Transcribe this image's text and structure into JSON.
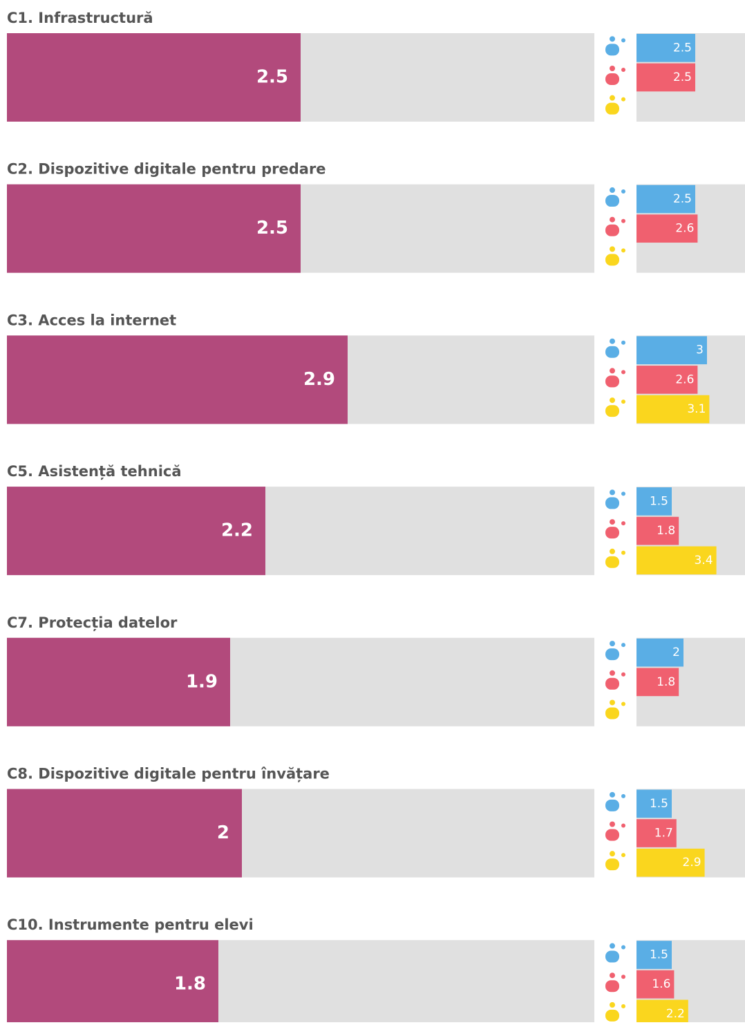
{
  "chart_data": [
    {
      "type": "bar",
      "title": "C1. Infrastructură",
      "values": [
        2.5
      ],
      "color": "#b24a7c",
      "xlim": [
        0,
        5
      ],
      "series": [
        {
          "color": "#5aaee5",
          "values": [
            2.5
          ]
        },
        {
          "color": "#f0606f",
          "values": [
            2.5
          ]
        },
        {
          "color": "#fad61e",
          "values": [
            null
          ]
        }
      ]
    },
    {
      "type": "bar",
      "title": "C2. Dispozitive digitale pentru predare",
      "values": [
        2.5
      ],
      "color": "#b24a7c",
      "xlim": [
        0,
        5
      ],
      "series": [
        {
          "color": "#5aaee5",
          "values": [
            2.5
          ]
        },
        {
          "color": "#f0606f",
          "values": [
            2.6
          ]
        },
        {
          "color": "#fad61e",
          "values": [
            null
          ]
        }
      ]
    },
    {
      "type": "bar",
      "title": "C3. Acces la internet",
      "values": [
        2.9
      ],
      "color": "#b24a7c",
      "xlim": [
        0,
        5
      ],
      "series": [
        {
          "color": "#5aaee5",
          "values": [
            3
          ]
        },
        {
          "color": "#f0606f",
          "values": [
            2.6
          ]
        },
        {
          "color": "#fad61e",
          "values": [
            3.1
          ]
        }
      ]
    },
    {
      "type": "bar",
      "title": "C5. Asistență tehnică",
      "values": [
        2.2
      ],
      "color": "#b24a7c",
      "xlim": [
        0,
        5
      ],
      "series": [
        {
          "color": "#5aaee5",
          "values": [
            1.5
          ]
        },
        {
          "color": "#f0606f",
          "values": [
            1.8
          ]
        },
        {
          "color": "#fad61e",
          "values": [
            3.4
          ]
        }
      ]
    },
    {
      "type": "bar",
      "title": "C7. Protecția datelor",
      "values": [
        1.9
      ],
      "color": "#b24a7c",
      "xlim": [
        0,
        5
      ],
      "series": [
        {
          "color": "#5aaee5",
          "values": [
            2
          ]
        },
        {
          "color": "#f0606f",
          "values": [
            1.8
          ]
        },
        {
          "color": "#fad61e",
          "values": [
            null
          ]
        }
      ]
    },
    {
      "type": "bar",
      "title": "C8. Dispozitive digitale pentru învățare",
      "values": [
        2
      ],
      "color": "#b24a7c",
      "xlim": [
        0,
        5
      ],
      "series": [
        {
          "color": "#5aaee5",
          "values": [
            1.5
          ]
        },
        {
          "color": "#f0606f",
          "values": [
            1.7
          ]
        },
        {
          "color": "#fad61e",
          "values": [
            2.9
          ]
        }
      ]
    },
    {
      "type": "bar",
      "title": "C10. Instrumente pentru elevi",
      "values": [
        1.8
      ],
      "color": "#b24a7c",
      "xlim": [
        0,
        5
      ],
      "series": [
        {
          "color": "#5aaee5",
          "values": [
            1.5
          ]
        },
        {
          "color": "#f0606f",
          "values": [
            1.6
          ]
        },
        {
          "color": "#fad61e",
          "values": [
            2.2
          ]
        }
      ]
    }
  ]
}
